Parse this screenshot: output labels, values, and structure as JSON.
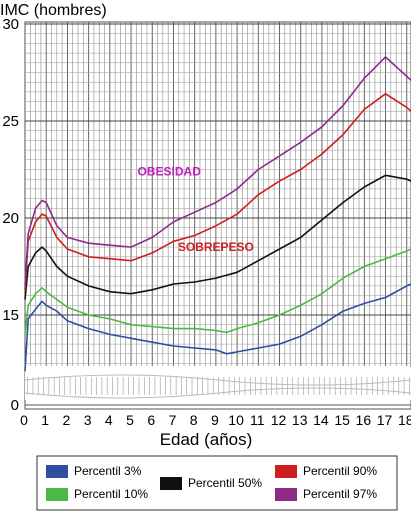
{
  "chart_data": {
    "type": "line",
    "title": "",
    "ylabel": "IMC (hombres)",
    "xlabel": "Edad (años)",
    "xlim": [
      0,
      18.2
    ],
    "ylim": [
      0,
      30
    ],
    "axis_break": true,
    "x_ticks": [
      0,
      1,
      2,
      3,
      4,
      5,
      6,
      7,
      8,
      9,
      10,
      11,
      12,
      13,
      14,
      15,
      16,
      17,
      18
    ],
    "y_ticks": [
      0,
      15,
      20,
      25,
      30
    ],
    "grid": true,
    "legend_position": "bottom",
    "annotations": [
      {
        "text": "OBESIDAD",
        "x": 6.8,
        "y": 22.2,
        "color": "#c020c0"
      },
      {
        "text": "SOBREPESO",
        "x": 9.0,
        "y": 18.3,
        "color": "#cc1f1f"
      }
    ],
    "series": [
      {
        "name": "Percentil 3%",
        "color": "#2e4fa0",
        "x": [
          0,
          0.15,
          0.5,
          0.8,
          1,
          1.5,
          2,
          3,
          4,
          5,
          6,
          7,
          8,
          9,
          9.5,
          10,
          11,
          12,
          13,
          14,
          15,
          16,
          17,
          18,
          18.2
        ],
        "y": [
          12.1,
          14.8,
          15.3,
          15.7,
          15.5,
          15.2,
          14.7,
          14.3,
          14.0,
          13.8,
          13.6,
          13.4,
          13.3,
          13.2,
          13.0,
          13.1,
          13.3,
          13.5,
          13.9,
          14.5,
          15.2,
          15.6,
          15.9,
          16.5,
          16.6
        ]
      },
      {
        "name": "Percentil 10%",
        "color": "#4cb848",
        "x": [
          0,
          0.15,
          0.5,
          0.8,
          1,
          1.5,
          2,
          3,
          4,
          5,
          6,
          7,
          8,
          9,
          9.5,
          10,
          11,
          12,
          13,
          14,
          15,
          16,
          17,
          18,
          18.2
        ],
        "y": [
          14.0,
          15.5,
          16.1,
          16.4,
          16.2,
          15.8,
          15.4,
          15.0,
          14.8,
          14.5,
          14.4,
          14.3,
          14.3,
          14.2,
          14.1,
          14.3,
          14.6,
          15.0,
          15.5,
          16.1,
          16.9,
          17.5,
          17.9,
          18.3,
          18.4
        ]
      },
      {
        "name": "Percentil 50%",
        "color": "#111111",
        "x": [
          0,
          0.15,
          0.5,
          0.8,
          1,
          1.5,
          2,
          3,
          4,
          5,
          6,
          7,
          8,
          9,
          10,
          11,
          12,
          13,
          14,
          15,
          16,
          17,
          18,
          18.2
        ],
        "y": [
          15.8,
          17.5,
          18.2,
          18.5,
          18.3,
          17.5,
          17.0,
          16.5,
          16.2,
          16.1,
          16.3,
          16.6,
          16.7,
          16.9,
          17.2,
          17.8,
          18.4,
          19.0,
          19.9,
          20.8,
          21.6,
          22.2,
          22.0,
          21.9
        ]
      },
      {
        "name": "Percentil 90%",
        "color": "#cc1f1f",
        "x": [
          0,
          0.15,
          0.5,
          0.8,
          1,
          1.5,
          2,
          3,
          4,
          5,
          6,
          7,
          8,
          9,
          10,
          11,
          12,
          13,
          14,
          15,
          16,
          17,
          18,
          18.2
        ],
        "y": [
          16.3,
          18.8,
          19.8,
          20.2,
          20.1,
          19.0,
          18.4,
          18.0,
          17.9,
          17.8,
          18.2,
          18.8,
          19.1,
          19.6,
          20.2,
          21.2,
          21.9,
          22.5,
          23.3,
          24.3,
          25.6,
          26.4,
          25.7,
          25.5
        ]
      },
      {
        "name": "Percentil 97%",
        "color": "#8e2c8a",
        "x": [
          0,
          0.15,
          0.5,
          0.8,
          1,
          1.5,
          2,
          3,
          4,
          5,
          6,
          7,
          8,
          9,
          10,
          11,
          12,
          13,
          14,
          15,
          16,
          17,
          18,
          18.2
        ],
        "y": [
          16.5,
          19.2,
          20.5,
          20.9,
          20.8,
          19.6,
          19.0,
          18.7,
          18.6,
          18.5,
          19.0,
          19.8,
          20.3,
          20.8,
          21.5,
          22.5,
          23.2,
          23.9,
          24.7,
          25.8,
          27.2,
          28.3,
          27.3,
          27.1
        ]
      }
    ]
  }
}
